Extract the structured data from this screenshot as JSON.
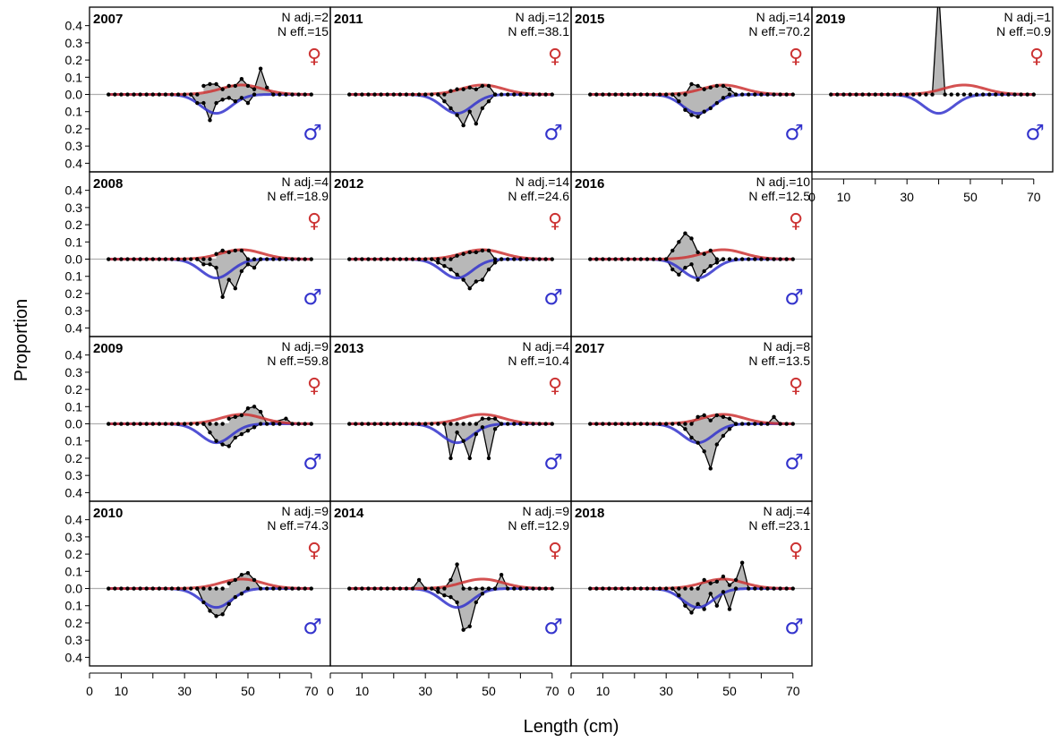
{
  "chart_data": {
    "type": "line",
    "xlabel": "Length (cm)",
    "ylabel": "Proportion",
    "y_ticks": [
      "0.4",
      "0.3",
      "0.2",
      "0.1",
      "0.0",
      "0.1",
      "0.2",
      "0.3",
      "0.4"
    ],
    "x_ticks": [
      0,
      10,
      30,
      50,
      70
    ],
    "xlim": [
      0,
      76
    ],
    "ylim": [
      -0.45,
      0.45
    ],
    "grid": false,
    "female_symbol": "♀",
    "male_symbol": "♂",
    "colors": {
      "female": "#cc3333",
      "male": "#3333cc",
      "fill": "#b8b8b8",
      "obs": "#000000",
      "zero_line": "#b0b0b0"
    },
    "length_bins": [
      6,
      8,
      10,
      12,
      14,
      16,
      18,
      20,
      22,
      24,
      26,
      28,
      30,
      32,
      34,
      36,
      38,
      40,
      42,
      44,
      46,
      48,
      50,
      52,
      54,
      56,
      58,
      60,
      62,
      64,
      66,
      68,
      70
    ],
    "panels": [
      {
        "year": "2007",
        "n_adj": "N adj.=2",
        "n_eff": "N eff.=15",
        "female_obs": [
          [
            36,
            0.05
          ],
          [
            38,
            0.06
          ],
          [
            40,
            0.06
          ],
          [
            42,
            0.03
          ],
          [
            44,
            0.05
          ],
          [
            46,
            0.05
          ],
          [
            48,
            0.09
          ],
          [
            50,
            0.05
          ],
          [
            52,
            0.03
          ],
          [
            54,
            0.15
          ],
          [
            56,
            0.04
          ],
          [
            58,
            0.0
          ]
        ],
        "male_obs": [
          [
            32,
            0.0
          ],
          [
            34,
            -0.05
          ],
          [
            36,
            -0.05
          ],
          [
            38,
            -0.15
          ],
          [
            40,
            -0.05
          ],
          [
            42,
            -0.03
          ],
          [
            44,
            -0.02
          ],
          [
            46,
            -0.04
          ],
          [
            48,
            -0.02
          ],
          [
            50,
            -0.05
          ],
          [
            52,
            0.0
          ]
        ]
      },
      {
        "year": "2008",
        "n_adj": "N adj.=4",
        "n_eff": "N eff.=18.9",
        "female_obs": [
          [
            40,
            0.03
          ],
          [
            42,
            0.05
          ],
          [
            44,
            0.04
          ],
          [
            46,
            0.05
          ],
          [
            48,
            0.05
          ],
          [
            50,
            0.0
          ]
        ],
        "male_obs": [
          [
            34,
            0.0
          ],
          [
            36,
            -0.03
          ],
          [
            38,
            -0.03
          ],
          [
            40,
            -0.05
          ],
          [
            42,
            -0.22
          ],
          [
            44,
            -0.12
          ],
          [
            46,
            -0.17
          ],
          [
            48,
            -0.07
          ],
          [
            50,
            -0.03
          ],
          [
            52,
            -0.05
          ],
          [
            54,
            0.0
          ]
        ]
      },
      {
        "year": "2009",
        "n_adj": "N adj.=9",
        "n_eff": "N eff.=59.8",
        "female_obs": [
          [
            44,
            0.03
          ],
          [
            46,
            0.04
          ],
          [
            48,
            0.05
          ],
          [
            50,
            0.09
          ],
          [
            52,
            0.1
          ],
          [
            54,
            0.07
          ],
          [
            56,
            0.0
          ],
          [
            62,
            0.03
          ],
          [
            64,
            0.0
          ]
        ],
        "male_obs": [
          [
            36,
            0.0
          ],
          [
            38,
            -0.05
          ],
          [
            40,
            -0.1
          ],
          [
            42,
            -0.12
          ],
          [
            44,
            -0.13
          ],
          [
            46,
            -0.08
          ],
          [
            48,
            -0.06
          ],
          [
            50,
            -0.04
          ],
          [
            52,
            -0.02
          ],
          [
            54,
            0.0
          ]
        ]
      },
      {
        "year": "2010",
        "n_adj": "N adj.=9",
        "n_eff": "N eff.=74.3",
        "female_obs": [
          [
            44,
            0.03
          ],
          [
            46,
            0.05
          ],
          [
            48,
            0.08
          ],
          [
            50,
            0.09
          ],
          [
            52,
            0.05
          ],
          [
            54,
            0.0
          ]
        ],
        "male_obs": [
          [
            34,
            0.0
          ],
          [
            36,
            -0.08
          ],
          [
            38,
            -0.13
          ],
          [
            40,
            -0.16
          ],
          [
            42,
            -0.15
          ],
          [
            44,
            -0.09
          ],
          [
            46,
            -0.05
          ],
          [
            48,
            -0.03
          ],
          [
            50,
            0.0
          ]
        ]
      },
      {
        "year": "2011",
        "n_adj": "N adj.=12",
        "n_eff": "N eff.=38.1",
        "female_obs": [
          [
            36,
            0.0
          ],
          [
            38,
            0.02
          ],
          [
            40,
            0.03
          ],
          [
            42,
            0.03
          ],
          [
            44,
            0.04
          ],
          [
            46,
            0.03
          ],
          [
            48,
            0.05
          ],
          [
            50,
            0.05
          ],
          [
            52,
            0.0
          ]
        ],
        "male_obs": [
          [
            34,
            0.0
          ],
          [
            36,
            -0.04
          ],
          [
            38,
            -0.08
          ],
          [
            40,
            -0.12
          ],
          [
            42,
            -0.18
          ],
          [
            44,
            -0.1
          ],
          [
            46,
            -0.17
          ],
          [
            48,
            -0.08
          ],
          [
            50,
            -0.04
          ],
          [
            52,
            0.0
          ]
        ]
      },
      {
        "year": "2012",
        "n_adj": "N adj.=14",
        "n_eff": "N eff.=24.6",
        "female_obs": [
          [
            38,
            0.0
          ],
          [
            40,
            0.02
          ],
          [
            42,
            0.03
          ],
          [
            44,
            0.04
          ],
          [
            46,
            0.04
          ],
          [
            48,
            0.05
          ],
          [
            50,
            0.05
          ],
          [
            52,
            0.0
          ]
        ],
        "male_obs": [
          [
            32,
            0.0
          ],
          [
            34,
            -0.02
          ],
          [
            36,
            -0.04
          ],
          [
            38,
            -0.06
          ],
          [
            40,
            -0.09
          ],
          [
            42,
            -0.12
          ],
          [
            44,
            -0.17
          ],
          [
            46,
            -0.13
          ],
          [
            48,
            -0.12
          ],
          [
            50,
            -0.06
          ],
          [
            52,
            -0.02
          ],
          [
            54,
            0.0
          ]
        ]
      },
      {
        "year": "2013",
        "n_adj": "N adj.=4",
        "n_eff": "N eff.=10.4",
        "female_obs": [
          [
            46,
            0.0
          ],
          [
            48,
            0.03
          ],
          [
            50,
            0.03
          ],
          [
            52,
            0.03
          ],
          [
            54,
            0.0
          ]
        ],
        "male_obs": [
          [
            36,
            0.0
          ],
          [
            38,
            -0.2
          ],
          [
            40,
            -0.05
          ],
          [
            42,
            -0.1
          ],
          [
            44,
            -0.2
          ],
          [
            46,
            -0.06
          ],
          [
            48,
            -0.02
          ],
          [
            50,
            -0.2
          ],
          [
            52,
            -0.03
          ],
          [
            54,
            0.0
          ]
        ]
      },
      {
        "year": "2014",
        "n_adj": "N adj.=9",
        "n_eff": "N eff.=12.9",
        "female_obs": [
          [
            26,
            0.0
          ],
          [
            28,
            0.05
          ],
          [
            30,
            0.0
          ],
          [
            36,
            0.0
          ],
          [
            38,
            0.05
          ],
          [
            40,
            0.14
          ],
          [
            42,
            0.0
          ],
          [
            52,
            0.0
          ],
          [
            54,
            0.08
          ],
          [
            56,
            0.0
          ]
        ],
        "male_obs": [
          [
            32,
            0.0
          ],
          [
            34,
            -0.02
          ],
          [
            36,
            -0.04
          ],
          [
            38,
            -0.05
          ],
          [
            40,
            -0.08
          ],
          [
            42,
            -0.24
          ],
          [
            44,
            -0.22
          ],
          [
            46,
            -0.08
          ],
          [
            48,
            -0.03
          ],
          [
            50,
            0.0
          ]
        ]
      },
      {
        "year": "2015",
        "n_adj": "N adj.=14",
        "n_eff": "N eff.=70.2",
        "female_obs": [
          [
            36,
            0.0
          ],
          [
            38,
            0.06
          ],
          [
            40,
            0.05
          ],
          [
            42,
            0.03
          ],
          [
            44,
            0.04
          ],
          [
            46,
            0.05
          ],
          [
            48,
            0.05
          ],
          [
            50,
            0.03
          ],
          [
            52,
            0.0
          ]
        ],
        "male_obs": [
          [
            32,
            0.0
          ],
          [
            34,
            -0.04
          ],
          [
            36,
            -0.09
          ],
          [
            38,
            -0.12
          ],
          [
            40,
            -0.13
          ],
          [
            42,
            -0.1
          ],
          [
            44,
            -0.08
          ],
          [
            46,
            -0.05
          ],
          [
            48,
            -0.02
          ],
          [
            50,
            0.0
          ]
        ]
      },
      {
        "year": "2016",
        "n_adj": "N adj.=10",
        "n_eff": "N eff.=12.5",
        "female_obs": [
          [
            30,
            0.0
          ],
          [
            32,
            0.05
          ],
          [
            34,
            0.1
          ],
          [
            36,
            0.15
          ],
          [
            38,
            0.12
          ],
          [
            40,
            0.04
          ],
          [
            42,
            0.03
          ],
          [
            44,
            0.05
          ],
          [
            46,
            0.0
          ]
        ],
        "male_obs": [
          [
            30,
            0.0
          ],
          [
            32,
            -0.06
          ],
          [
            34,
            -0.09
          ],
          [
            36,
            -0.05
          ],
          [
            38,
            -0.03
          ],
          [
            40,
            -0.12
          ],
          [
            42,
            -0.07
          ],
          [
            44,
            -0.04
          ],
          [
            46,
            -0.02
          ],
          [
            48,
            0.0
          ]
        ]
      },
      {
        "year": "2017",
        "n_adj": "N adj.=8",
        "n_eff": "N eff.=13.5",
        "female_obs": [
          [
            38,
            0.0
          ],
          [
            40,
            0.04
          ],
          [
            42,
            0.05
          ],
          [
            44,
            0.02
          ],
          [
            46,
            0.05
          ],
          [
            48,
            0.04
          ],
          [
            50,
            0.03
          ],
          [
            52,
            0.0
          ],
          [
            62,
            0.0
          ],
          [
            64,
            0.04
          ],
          [
            66,
            0.0
          ]
        ],
        "male_obs": [
          [
            34,
            0.0
          ],
          [
            36,
            -0.03
          ],
          [
            38,
            -0.08
          ],
          [
            40,
            -0.11
          ],
          [
            42,
            -0.16
          ],
          [
            44,
            -0.26
          ],
          [
            46,
            -0.12
          ],
          [
            48,
            -0.07
          ],
          [
            50,
            -0.03
          ],
          [
            52,
            0.0
          ]
        ]
      },
      {
        "year": "2018",
        "n_adj": "N adj.=4",
        "n_eff": "N eff.=23.1",
        "female_obs": [
          [
            40,
            0.0
          ],
          [
            42,
            0.05
          ],
          [
            44,
            0.03
          ],
          [
            46,
            0.04
          ],
          [
            48,
            0.07
          ],
          [
            50,
            0.02
          ],
          [
            52,
            0.05
          ],
          [
            54,
            0.15
          ],
          [
            56,
            0.0
          ]
        ],
        "male_obs": [
          [
            32,
            0.0
          ],
          [
            34,
            -0.04
          ],
          [
            36,
            -0.1
          ],
          [
            38,
            -0.14
          ],
          [
            40,
            -0.09
          ],
          [
            42,
            -0.12
          ],
          [
            44,
            -0.03
          ],
          [
            46,
            -0.1
          ],
          [
            48,
            -0.02
          ],
          [
            50,
            -0.12
          ],
          [
            52,
            0.0
          ]
        ]
      },
      {
        "year": "2019",
        "n_adj": "N adj.=1",
        "n_eff": "N eff.=0.9",
        "female_obs": [
          [
            38,
            0.0
          ],
          [
            40,
            0.6
          ],
          [
            42,
            0.0
          ]
        ],
        "male_obs": []
      }
    ]
  }
}
